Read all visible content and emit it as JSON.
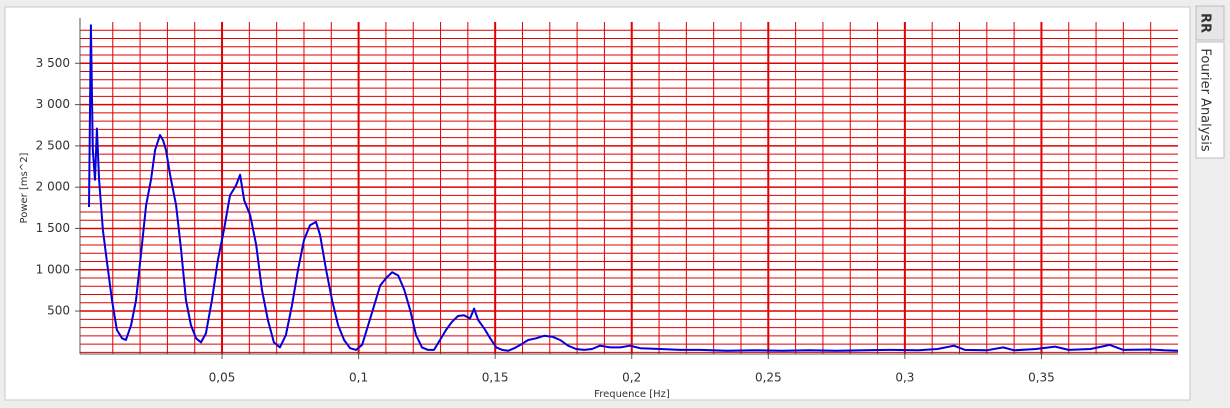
{
  "tabs": [
    "RR",
    "Fourier Analysis"
  ],
  "chart_data": {
    "type": "line",
    "x_label": "Frequence [Hz]",
    "y_label": "Power [ms^2]",
    "color": "#0000dd",
    "grid_color": "#e00000",
    "x": [
      0.0013,
      0.002,
      0.0027,
      0.0035,
      0.0042,
      0.005,
      0.0064,
      0.0079,
      0.0097,
      0.0115,
      0.0134,
      0.0148,
      0.0167,
      0.0185,
      0.0203,
      0.0222,
      0.024,
      0.0255,
      0.0273,
      0.0284,
      0.0295,
      0.031,
      0.0332,
      0.035,
      0.0368,
      0.0386,
      0.0405,
      0.0423,
      0.0441,
      0.0463,
      0.0485,
      0.0507,
      0.0529,
      0.0551,
      0.0566,
      0.0581,
      0.0603,
      0.0625,
      0.0646,
      0.0668,
      0.069,
      0.0712,
      0.0734,
      0.0756,
      0.0778,
      0.08,
      0.0822,
      0.0844,
      0.0859,
      0.0881,
      0.0903,
      0.0925,
      0.0947,
      0.0969,
      0.0991,
      0.1013,
      0.1035,
      0.1057,
      0.1079,
      0.1101,
      0.1123,
      0.1145,
      0.1167,
      0.1189,
      0.121,
      0.1232,
      0.1254,
      0.1276,
      0.1298,
      0.132,
      0.1342,
      0.1364,
      0.1386,
      0.1408,
      0.1423,
      0.1438,
      0.146,
      0.1482,
      0.1504,
      0.1526,
      0.1548,
      0.157,
      0.1592,
      0.1621,
      0.165,
      0.1679,
      0.1709,
      0.1738,
      0.1767,
      0.1796,
      0.1826,
      0.1855,
      0.1884,
      0.1921,
      0.1958,
      0.1994,
      0.2031,
      0.2104,
      0.2178,
      0.225,
      0.235,
      0.245,
      0.255,
      0.265,
      0.275,
      0.285,
      0.295,
      0.305,
      0.312,
      0.318,
      0.322,
      0.33,
      0.336,
      0.34,
      0.348,
      0.355,
      0.36,
      0.368,
      0.375,
      0.38,
      0.39,
      0.395,
      0.4
    ],
    "values": [
      1760,
      3960,
      2450,
      2090,
      2710,
      2090,
      1480,
      1090,
      630,
      270,
      170,
      150,
      330,
      630,
      1180,
      1780,
      2090,
      2450,
      2630,
      2570,
      2450,
      2150,
      1780,
      1240,
      630,
      330,
      170,
      120,
      230,
      630,
      1120,
      1480,
      1900,
      2020,
      2150,
      1840,
      1660,
      1300,
      760,
      390,
      120,
      60,
      210,
      570,
      1000,
      1360,
      1540,
      1580,
      1420,
      1000,
      630,
      330,
      150,
      50,
      30,
      90,
      330,
      570,
      810,
      900,
      970,
      930,
      760,
      510,
      210,
      60,
      30,
      30,
      150,
      270,
      370,
      440,
      450,
      410,
      530,
      390,
      290,
      170,
      60,
      30,
      20,
      50,
      90,
      150,
      170,
      200,
      190,
      150,
      80,
      40,
      30,
      40,
      80,
      60,
      60,
      80,
      50,
      40,
      30,
      30,
      20,
      25,
      20,
      25,
      20,
      25,
      30,
      25,
      40,
      80,
      30,
      25,
      60,
      25,
      40,
      70,
      30,
      40,
      90,
      30,
      35,
      25,
      20
    ],
    "xlim": [
      -0.002,
      0.4
    ],
    "ylim": [
      -20,
      4000
    ],
    "xticks": [
      {
        "value": 0.05,
        "label": "0,05"
      },
      {
        "value": 0.1,
        "label": "0,1"
      },
      {
        "value": 0.15,
        "label": "0,15"
      },
      {
        "value": 0.2,
        "label": "0,2"
      },
      {
        "value": 0.25,
        "label": "0,25"
      },
      {
        "value": 0.3,
        "label": "0,3"
      },
      {
        "value": 0.35,
        "label": "0,35"
      }
    ],
    "yticks": [
      500,
      {
        "value": 1000,
        "label": "1 000"
      },
      {
        "value": 1500,
        "label": "1 500"
      },
      {
        "value": 2000,
        "label": "2 000"
      },
      {
        "value": 2500,
        "label": "2 500"
      },
      {
        "value": 3000,
        "label": "3 000"
      },
      {
        "value": 3500,
        "label": "3 500"
      }
    ],
    "x_minor_ticks": [
      0.01,
      0.02,
      0.03,
      0.04,
      0.06,
      0.07,
      0.08,
      0.09,
      0.11,
      0.12,
      0.13,
      0.14,
      0.16,
      0.17,
      0.18,
      0.19,
      0.21,
      0.22,
      0.23,
      0.24,
      0.26,
      0.27,
      0.28,
      0.29,
      0.31,
      0.32,
      0.33,
      0.34,
      0.36,
      0.37,
      0.38,
      0.39
    ],
    "y_minor_ticks": [
      0,
      100,
      200,
      300,
      400,
      600,
      700,
      800,
      900,
      1100,
      1200,
      1300,
      1400,
      1600,
      1700,
      1800,
      1900,
      2100,
      2200,
      2300,
      2400,
      2600,
      2700,
      2800,
      2900,
      3100,
      3200,
      3300,
      3400,
      3600,
      3700,
      3800,
      3900
    ],
    "grid": true
  }
}
